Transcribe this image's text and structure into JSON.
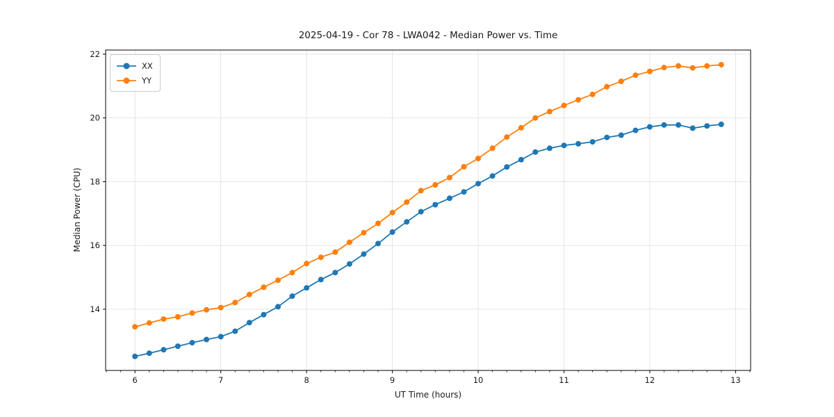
{
  "chart_data": {
    "type": "line",
    "title": "2025-04-19 - Cor 78 - LWA042 - Median Power vs. Time",
    "xlabel": "UT Time (hours)",
    "ylabel": "Median Power (CPU)",
    "x": [
      6.0,
      6.1667,
      6.3333,
      6.5,
      6.6667,
      6.8333,
      7.0,
      7.1667,
      7.3333,
      7.5,
      7.6667,
      7.8333,
      8.0,
      8.1667,
      8.3333,
      8.5,
      8.6667,
      8.8333,
      9.0,
      9.1667,
      9.3333,
      9.5,
      9.6667,
      9.8333,
      10.0,
      10.1667,
      10.3333,
      10.5,
      10.6667,
      10.8333,
      11.0,
      11.1667,
      11.3333,
      11.5,
      11.6667,
      11.8333,
      12.0,
      12.1667,
      12.3333,
      12.5,
      12.6667,
      12.8333
    ],
    "series": [
      {
        "name": "XX",
        "color": "#1f77b4",
        "values": [
          12.52,
          12.62,
          12.73,
          12.84,
          12.95,
          13.05,
          13.14,
          13.31,
          13.58,
          13.83,
          14.08,
          14.41,
          14.67,
          14.93,
          15.15,
          15.42,
          15.73,
          16.06,
          16.42,
          16.74,
          17.06,
          17.28,
          17.48,
          17.68,
          17.94,
          18.18,
          18.46,
          18.69,
          18.93,
          19.05,
          19.14,
          19.19,
          19.25,
          19.39,
          19.46,
          19.61,
          19.72,
          19.78,
          19.78,
          19.68,
          19.75,
          19.8
        ]
      },
      {
        "name": "YY",
        "color": "#ff7f0e",
        "values": [
          13.45,
          13.57,
          13.69,
          13.76,
          13.88,
          13.98,
          14.05,
          14.21,
          14.46,
          14.69,
          14.91,
          15.15,
          15.43,
          15.63,
          15.79,
          16.1,
          16.4,
          16.69,
          17.03,
          17.36,
          17.72,
          17.9,
          18.13,
          18.47,
          18.73,
          19.05,
          19.4,
          19.69,
          20.0,
          20.2,
          20.39,
          20.57,
          20.74,
          20.98,
          21.15,
          21.34,
          21.46,
          21.58,
          21.63,
          21.57,
          21.63,
          21.67
        ]
      }
    ],
    "xticks": [
      6,
      7,
      8,
      9,
      10,
      11,
      12,
      13
    ],
    "yticks": [
      14,
      16,
      18,
      20,
      22
    ],
    "x_minor_step": 0.166667,
    "xlim": [
      5.658,
      13.175
    ],
    "ylim": [
      12.08,
      22.13
    ],
    "grid": true,
    "legend_position": "upper left",
    "marker": "o"
  }
}
